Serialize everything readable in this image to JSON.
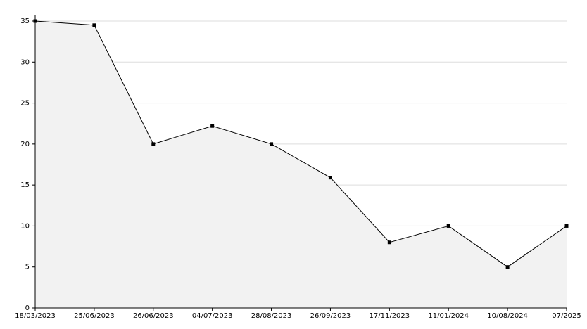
{
  "chart_data": {
    "type": "line",
    "categories": [
      "18/03/2023",
      "25/06/2023",
      "26/06/2023",
      "04/07/2023",
      "28/08/2023",
      "26/09/2023",
      "17/11/2023",
      "11/01/2024",
      "10/08/2024",
      "07/2025"
    ],
    "values": [
      35,
      34.5,
      20,
      22.2,
      20,
      15.9,
      8,
      10,
      5,
      10
    ],
    "color": "#000000",
    "fill": "#f2f2f2",
    "ylim": [
      0,
      35
    ],
    "yticks": [
      0,
      5,
      10,
      15,
      20,
      25,
      30,
      35
    ],
    "grid": true
  }
}
